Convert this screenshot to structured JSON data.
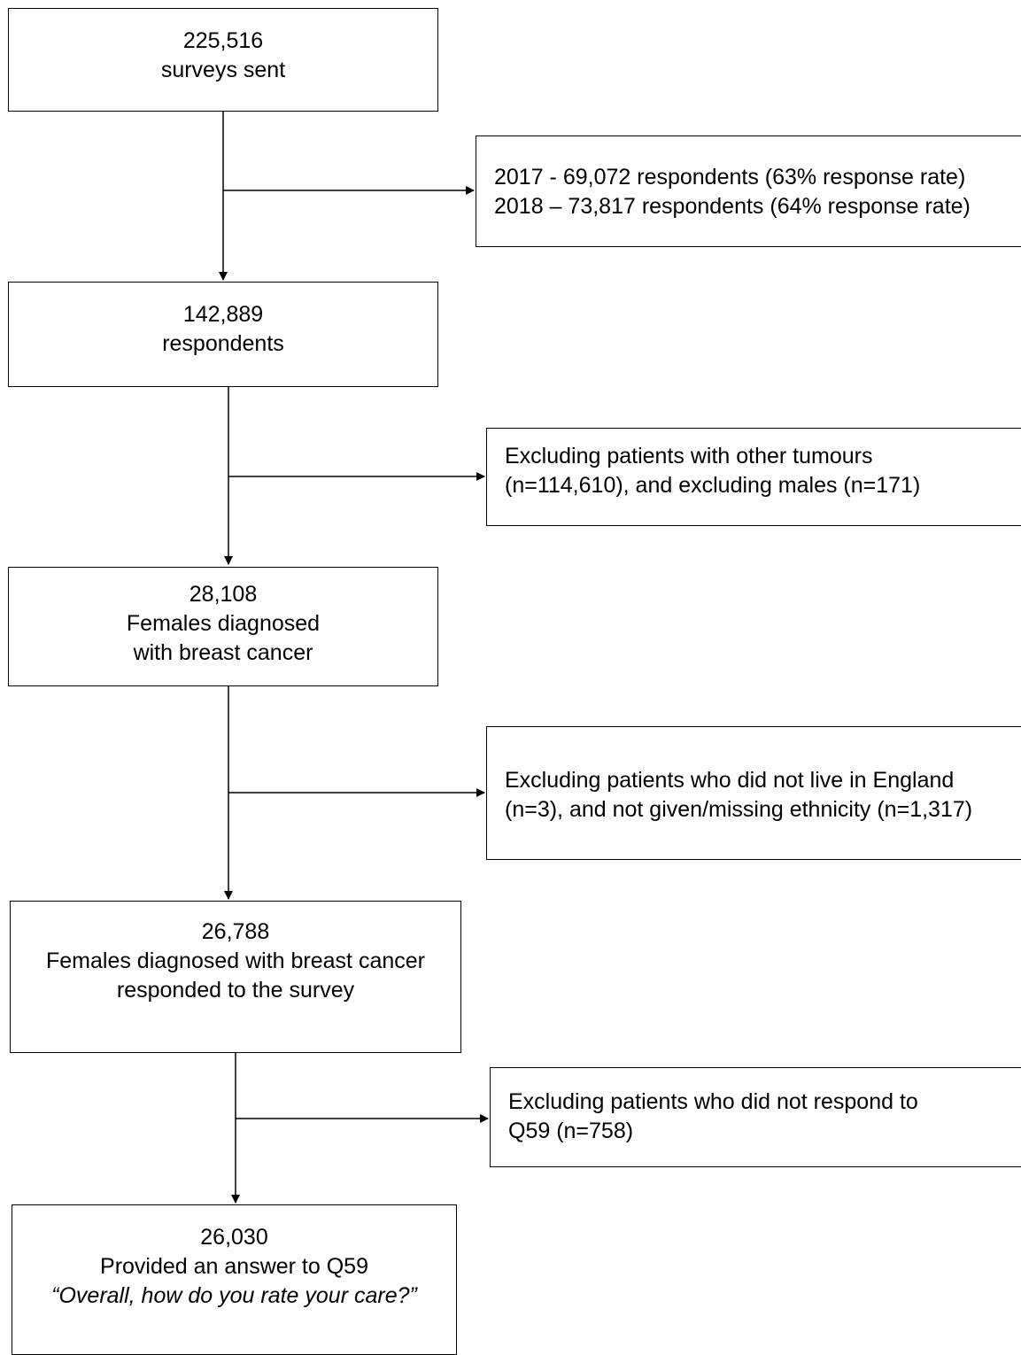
{
  "flowchart": {
    "main_boxes": [
      {
        "id": "sent",
        "lines": [
          "225,516",
          "surveys sent"
        ]
      },
      {
        "id": "respondents",
        "lines": [
          "142,889",
          "respondents"
        ]
      },
      {
        "id": "females",
        "lines": [
          "28,108",
          "Females diagnosed",
          "with breast cancer"
        ]
      },
      {
        "id": "responded",
        "lines": [
          "26,788",
          "Females diagnosed with breast cancer",
          "responded to the survey"
        ]
      },
      {
        "id": "final",
        "lines": [
          "26,030",
          "Provided an answer to Q59",
          "“Overall, how do you rate your care?”"
        ]
      }
    ],
    "side_boxes": [
      {
        "id": "response-rates",
        "lines": [
          "2017 - 69,072 respondents (63% response rate)",
          "2018 – 73,817 respondents (64% response rate)"
        ]
      },
      {
        "id": "exclude-tumours",
        "lines": [
          "Excluding patients with other tumours",
          "(n=114,610), and excluding males (n=171)"
        ]
      },
      {
        "id": "exclude-england",
        "lines": [
          "Excluding patients who did not live in England",
          "(n=3), and not given/missing ethnicity (n=1,317)"
        ]
      },
      {
        "id": "exclude-q59",
        "lines": [
          "Excluding patients who did not respond to",
          "Q59 (n=758)"
        ]
      }
    ]
  }
}
